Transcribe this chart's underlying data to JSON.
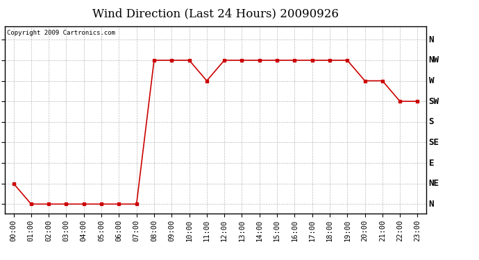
{
  "title": "Wind Direction (Last 24 Hours) 20090926",
  "copyright": "Copyright 2009 Cartronics.com",
  "x_labels": [
    "00:00",
    "01:00",
    "02:00",
    "03:00",
    "04:00",
    "05:00",
    "06:00",
    "07:00",
    "08:00",
    "09:00",
    "10:00",
    "11:00",
    "12:00",
    "13:00",
    "14:00",
    "15:00",
    "16:00",
    "17:00",
    "18:00",
    "19:00",
    "20:00",
    "21:00",
    "22:00",
    "23:00"
  ],
  "y_ticks_labels": [
    "N",
    "NE",
    "E",
    "SE",
    "S",
    "SW",
    "W",
    "NW",
    "N"
  ],
  "y_ticks_values": [
    0,
    45,
    90,
    135,
    180,
    225,
    270,
    315,
    360
  ],
  "wind_data": [
    45,
    0,
    0,
    0,
    0,
    0,
    0,
    0,
    315,
    315,
    315,
    270,
    315,
    315,
    315,
    315,
    315,
    315,
    315,
    315,
    270,
    270,
    225,
    225
  ],
  "line_color": "#cc0000",
  "marker": "s",
  "marker_size": 3,
  "grid_color": "#bbbbbb",
  "bg_color": "#ffffff",
  "title_fontsize": 12,
  "ylabel_fontsize": 9,
  "xlabel_fontsize": 7.5,
  "copyright_fontsize": 6.5,
  "ylim_min": -20,
  "ylim_max": 390
}
